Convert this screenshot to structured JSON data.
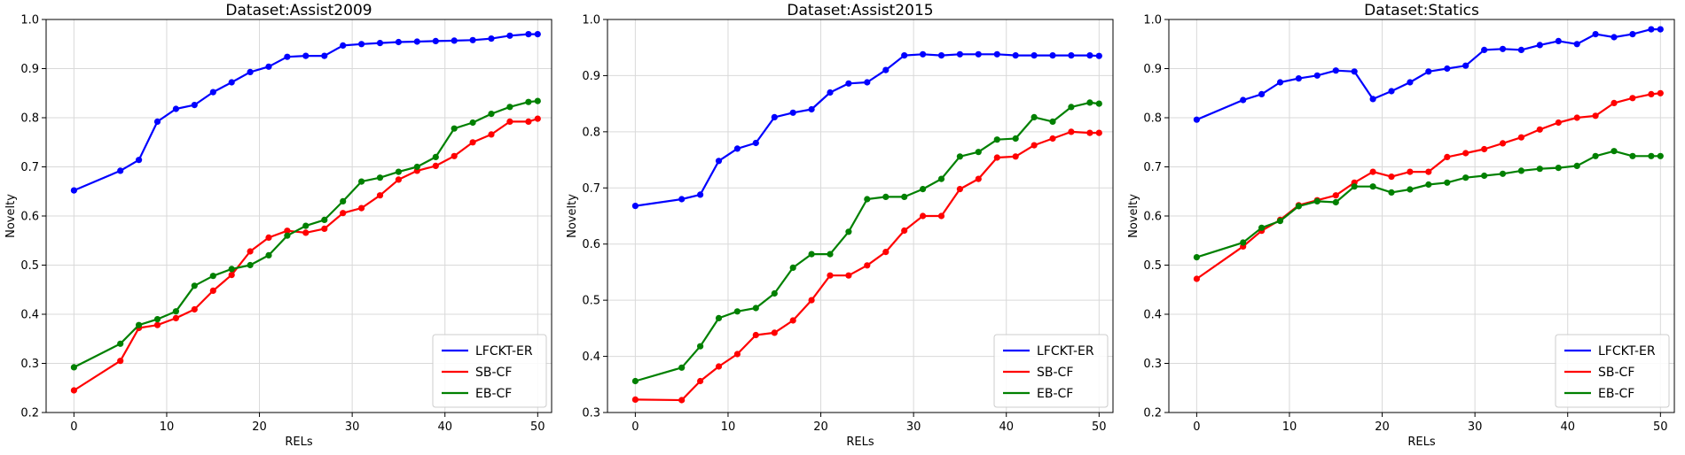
{
  "figure": {
    "chart_data": [
      {
        "type": "line",
        "title": "Dataset:Assist2009",
        "xlabel": "RELs",
        "ylabel": "Novelty",
        "xlim": [
          -3,
          51.5
        ],
        "ylim": [
          0.2,
          1.0
        ],
        "xticks": [
          0,
          10,
          20,
          30,
          40,
          50
        ],
        "yticks": [
          0.2,
          0.3,
          0.4,
          0.5,
          0.6,
          0.7,
          0.8,
          0.9,
          1.0
        ],
        "grid": true,
        "legend_position": "bottom-right",
        "series": [
          {
            "name": "LFCKT-ER",
            "color": "#0000ff",
            "x": [
              0,
              5,
              7,
              9,
              11,
              13,
              15,
              17,
              19,
              21,
              23,
              25,
              27,
              29,
              31,
              33,
              35,
              37,
              39,
              41,
              43,
              45,
              47,
              49,
              50
            ],
            "y": [
              0.652,
              0.692,
              0.714,
              0.792,
              0.818,
              0.826,
              0.852,
              0.872,
              0.893,
              0.904,
              0.924,
              0.926,
              0.926,
              0.947,
              0.95,
              0.952,
              0.954,
              0.955,
              0.956,
              0.957,
              0.958,
              0.961,
              0.967,
              0.97,
              0.97
            ]
          },
          {
            "name": "SB-CF",
            "color": "#ff0000",
            "x": [
              0,
              5,
              7,
              9,
              11,
              13,
              15,
              17,
              19,
              21,
              23,
              25,
              27,
              29,
              31,
              33,
              35,
              37,
              39,
              41,
              43,
              45,
              47,
              49,
              50
            ],
            "y": [
              0.245,
              0.305,
              0.372,
              0.378,
              0.392,
              0.41,
              0.448,
              0.48,
              0.528,
              0.556,
              0.57,
              0.566,
              0.574,
              0.606,
              0.616,
              0.642,
              0.674,
              0.692,
              0.702,
              0.722,
              0.75,
              0.766,
              0.792,
              0.792,
              0.798
            ]
          },
          {
            "name": "EB-CF",
            "color": "#008000",
            "x": [
              0,
              5,
              7,
              9,
              11,
              13,
              15,
              17,
              19,
              21,
              23,
              25,
              27,
              29,
              31,
              33,
              35,
              37,
              39,
              41,
              43,
              45,
              47,
              49,
              50
            ],
            "y": [
              0.292,
              0.34,
              0.378,
              0.39,
              0.406,
              0.458,
              0.478,
              0.492,
              0.5,
              0.52,
              0.56,
              0.58,
              0.592,
              0.63,
              0.67,
              0.678,
              0.69,
              0.7,
              0.72,
              0.778,
              0.79,
              0.808,
              0.822,
              0.832,
              0.834
            ]
          }
        ]
      },
      {
        "type": "line",
        "title": "Dataset:Assist2015",
        "xlabel": "RELs",
        "ylabel": "Novelty",
        "xlim": [
          -3,
          51.5
        ],
        "ylim": [
          0.3,
          1.0
        ],
        "xticks": [
          0,
          10,
          20,
          30,
          40,
          50
        ],
        "yticks": [
          0.3,
          0.4,
          0.5,
          0.6,
          0.7,
          0.8,
          0.9,
          1.0
        ],
        "grid": true,
        "legend_position": "bottom-right",
        "series": [
          {
            "name": "LFCKT-ER",
            "color": "#0000ff",
            "x": [
              0,
              5,
              7,
              9,
              11,
              13,
              15,
              17,
              19,
              21,
              23,
              25,
              27,
              29,
              31,
              33,
              35,
              37,
              39,
              41,
              43,
              45,
              47,
              49,
              50
            ],
            "y": [
              0.668,
              0.68,
              0.688,
              0.748,
              0.77,
              0.78,
              0.826,
              0.834,
              0.84,
              0.87,
              0.886,
              0.888,
              0.91,
              0.936,
              0.938,
              0.936,
              0.938,
              0.938,
              0.938,
              0.936,
              0.936,
              0.936,
              0.936,
              0.936,
              0.935
            ]
          },
          {
            "name": "SB-CF",
            "color": "#ff0000",
            "x": [
              0,
              5,
              7,
              9,
              11,
              13,
              15,
              17,
              19,
              21,
              23,
              25,
              27,
              29,
              31,
              33,
              35,
              37,
              39,
              41,
              43,
              45,
              47,
              49,
              50
            ],
            "y": [
              0.323,
              0.322,
              0.356,
              0.382,
              0.404,
              0.438,
              0.442,
              0.464,
              0.5,
              0.544,
              0.544,
              0.562,
              0.586,
              0.624,
              0.65,
              0.65,
              0.698,
              0.716,
              0.754,
              0.756,
              0.776,
              0.788,
              0.8,
              0.798,
              0.798
            ]
          },
          {
            "name": "EB-CF",
            "color": "#008000",
            "x": [
              0,
              5,
              7,
              9,
              11,
              13,
              15,
              17,
              19,
              21,
              23,
              25,
              27,
              29,
              31,
              33,
              35,
              37,
              39,
              41,
              43,
              45,
              47,
              49,
              50
            ],
            "y": [
              0.356,
              0.38,
              0.418,
              0.468,
              0.48,
              0.486,
              0.512,
              0.558,
              0.582,
              0.582,
              0.622,
              0.68,
              0.684,
              0.684,
              0.698,
              0.716,
              0.756,
              0.764,
              0.786,
              0.788,
              0.826,
              0.818,
              0.844,
              0.852,
              0.85
            ]
          }
        ]
      },
      {
        "type": "line",
        "title": "Dataset:Statics",
        "xlabel": "RELs",
        "ylabel": "Novelty",
        "xlim": [
          -3,
          51.5
        ],
        "ylim": [
          0.2,
          1.0
        ],
        "xticks": [
          0,
          10,
          20,
          30,
          40,
          50
        ],
        "yticks": [
          0.2,
          0.3,
          0.4,
          0.5,
          0.6,
          0.7,
          0.8,
          0.9,
          1.0
        ],
        "grid": true,
        "legend_position": "bottom-right",
        "series": [
          {
            "name": "LFCKT-ER",
            "color": "#0000ff",
            "x": [
              0,
              5,
              7,
              9,
              11,
              13,
              15,
              17,
              19,
              21,
              23,
              25,
              27,
              29,
              31,
              33,
              35,
              37,
              39,
              41,
              43,
              45,
              47,
              49,
              50
            ],
            "y": [
              0.796,
              0.836,
              0.848,
              0.872,
              0.88,
              0.886,
              0.896,
              0.894,
              0.838,
              0.854,
              0.872,
              0.894,
              0.9,
              0.906,
              0.938,
              0.94,
              0.938,
              0.948,
              0.956,
              0.95,
              0.97,
              0.964,
              0.97,
              0.98,
              0.98
            ]
          },
          {
            "name": "SB-CF",
            "color": "#ff0000",
            "x": [
              0,
              5,
              7,
              9,
              11,
              13,
              15,
              17,
              19,
              21,
              23,
              25,
              27,
              29,
              31,
              33,
              35,
              37,
              39,
              41,
              43,
              45,
              47,
              49,
              50
            ],
            "y": [
              0.472,
              0.538,
              0.57,
              0.592,
              0.622,
              0.632,
              0.642,
              0.668,
              0.69,
              0.68,
              0.69,
              0.69,
              0.72,
              0.728,
              0.736,
              0.748,
              0.76,
              0.776,
              0.79,
              0.8,
              0.804,
              0.83,
              0.84,
              0.848,
              0.85
            ]
          },
          {
            "name": "EB-CF",
            "color": "#008000",
            "x": [
              0,
              5,
              7,
              9,
              11,
              13,
              15,
              17,
              19,
              21,
              23,
              25,
              27,
              29,
              31,
              33,
              35,
              37,
              39,
              41,
              43,
              45,
              47,
              49,
              50
            ],
            "y": [
              0.516,
              0.546,
              0.576,
              0.59,
              0.62,
              0.63,
              0.628,
              0.66,
              0.66,
              0.648,
              0.654,
              0.664,
              0.668,
              0.678,
              0.682,
              0.686,
              0.692,
              0.696,
              0.698,
              0.702,
              0.722,
              0.732,
              0.722,
              0.722,
              0.722
            ]
          }
        ]
      }
    ]
  }
}
